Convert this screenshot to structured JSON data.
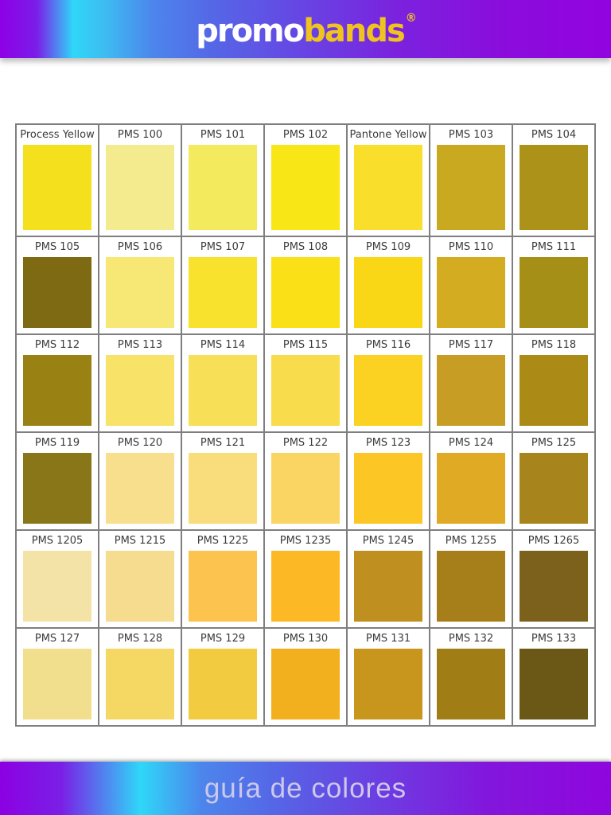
{
  "header": {
    "logo_part1": "promo",
    "logo_part2": "bands",
    "registered_mark": "®",
    "gradient_colors": [
      "#8e00e6",
      "#2fd7f8",
      "#5566e6",
      "#9303df"
    ],
    "logo_colors": {
      "promo": "#ffffff",
      "bands": "#f0c41e"
    }
  },
  "footer": {
    "title": "guía de colores",
    "text_color": "#cdc7ea"
  },
  "palette": {
    "grid": {
      "columns": 7,
      "rows": 6,
      "border_color": "#7f7f7f",
      "cell_background": "#ffffff",
      "label_color": "#3c3c3c"
    },
    "rows": [
      [
        {
          "label": "Process Yellow",
          "color": "#f5e01d"
        },
        {
          "label": "PMS 100",
          "color": "#f4eb8e"
        },
        {
          "label": "PMS 101",
          "color": "#f4ea5e"
        },
        {
          "label": "PMS 102",
          "color": "#f9e617"
        },
        {
          "label": "Pantone Yellow",
          "color": "#fade2c"
        },
        {
          "label": "PMS 103",
          "color": "#c8a91f"
        },
        {
          "label": "PMS 104",
          "color": "#ac9218"
        }
      ],
      [
        {
          "label": "PMS 105",
          "color": "#7d6a12"
        },
        {
          "label": "PMS 106",
          "color": "#f7e876"
        },
        {
          "label": "PMS 107",
          "color": "#f8e22e"
        },
        {
          "label": "PMS 108",
          "color": "#f9e017"
        },
        {
          "label": "PMS 109",
          "color": "#f9d616"
        },
        {
          "label": "PMS 110",
          "color": "#d3ac22"
        },
        {
          "label": "PMS 111",
          "color": "#a68f17"
        }
      ],
      [
        {
          "label": "PMS 112",
          "color": "#998213"
        },
        {
          "label": "PMS 113",
          "color": "#f8e267"
        },
        {
          "label": "PMS 114",
          "color": "#f8df58"
        },
        {
          "label": "PMS 115",
          "color": "#f9dc4c"
        },
        {
          "label": "PMS 116",
          "color": "#fbd222"
        },
        {
          "label": "PMS 117",
          "color": "#c79d23"
        },
        {
          "label": "PMS 118",
          "color": "#ab8b16"
        }
      ],
      [
        {
          "label": "PMS 119",
          "color": "#887619"
        },
        {
          "label": "PMS 120",
          "color": "#f8df8d"
        },
        {
          "label": "PMS 121",
          "color": "#f9dc7c"
        },
        {
          "label": "PMS 122",
          "color": "#fbd563"
        },
        {
          "label": "PMS 123",
          "color": "#fcc725"
        },
        {
          "label": "PMS 124",
          "color": "#e0aa24"
        },
        {
          "label": "PMS 125",
          "color": "#a8841c"
        }
      ],
      [
        {
          "label": "PMS 1205",
          "color": "#f3e3a6"
        },
        {
          "label": "PMS 1215",
          "color": "#f6dc8f"
        },
        {
          "label": "PMS 1225",
          "color": "#fcc44e"
        },
        {
          "label": "PMS 1235",
          "color": "#fcb825"
        },
        {
          "label": "PMS 1245",
          "color": "#bf8f20"
        },
        {
          "label": "PMS 1255",
          "color": "#a67f1b"
        },
        {
          "label": "PMS 1265",
          "color": "#7c611c"
        }
      ],
      [
        {
          "label": "PMS 127",
          "color": "#f2df8e"
        },
        {
          "label": "PMS 128",
          "color": "#f5d864"
        },
        {
          "label": "PMS 129",
          "color": "#f3cb40"
        },
        {
          "label": "PMS 130",
          "color": "#f2b01e"
        },
        {
          "label": "PMS 131",
          "color": "#c9961d"
        },
        {
          "label": "PMS 132",
          "color": "#a07d15"
        },
        {
          "label": "PMS 133",
          "color": "#6b5816"
        }
      ]
    ]
  }
}
